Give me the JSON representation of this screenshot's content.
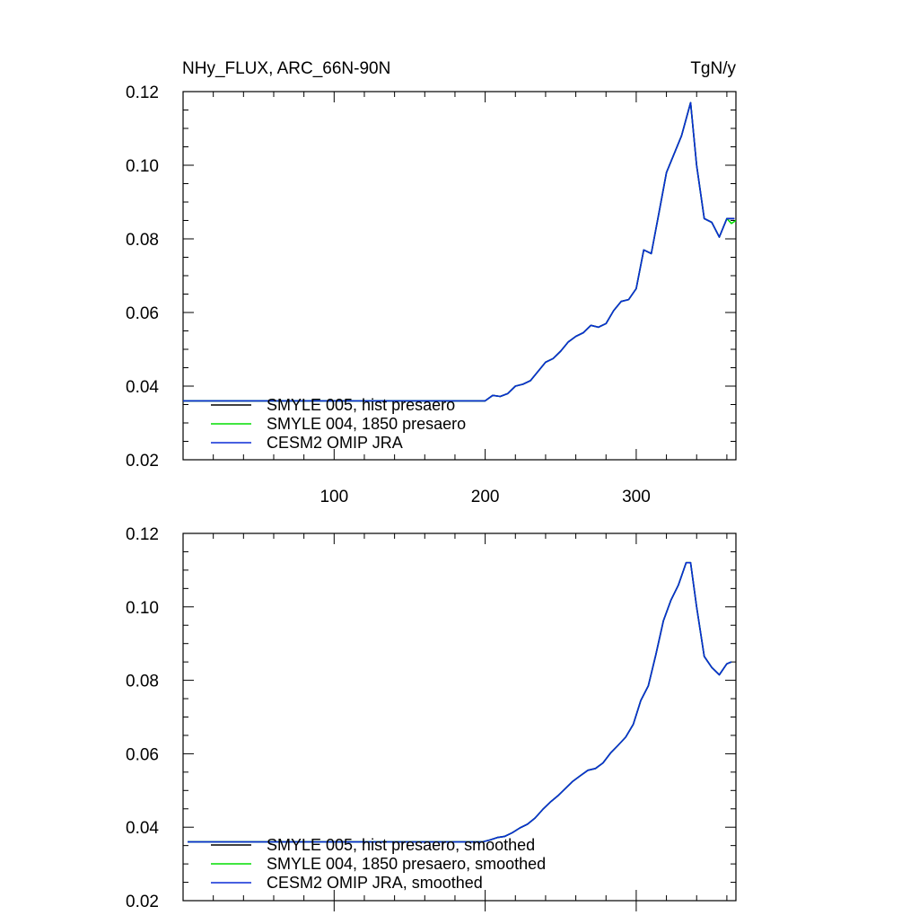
{
  "title_left": "NHy_FLUX, ARC_66N-90N",
  "title_right": "TgN/y",
  "colors": {
    "axis": "#000000",
    "smyle005": "#000000",
    "smyle004": "#00dd00",
    "jra": "#0a2bd6"
  },
  "chart_data": [
    {
      "type": "line",
      "id": "raw",
      "title": "NHy_FLUX, ARC_66N-90N",
      "units": "TgN/y",
      "xlim": [
        0,
        366
      ],
      "ylim": [
        0.02,
        0.12
      ],
      "yticks": [
        "0.02",
        "0.04",
        "0.06",
        "0.08",
        "0.10",
        "0.12"
      ],
      "xticks": [
        "100",
        "200",
        "300"
      ],
      "xtick_values": [
        100,
        200,
        300
      ],
      "grid": false,
      "legend_position": "bottom-left",
      "series": [
        {
          "name": "SMYLE 005, hist presaero",
          "color_key": "smyle005",
          "x": [
            0,
            200,
            205,
            210,
            215,
            220,
            225,
            230,
            235,
            240,
            245,
            250,
            255,
            260,
            265,
            270,
            275,
            280,
            285,
            290,
            295,
            300,
            305,
            310,
            315,
            320,
            325,
            330,
            336,
            340,
            345,
            350,
            355,
            360,
            365
          ],
          "y": [
            0.036,
            0.036,
            0.0375,
            0.0372,
            0.038,
            0.04,
            0.0405,
            0.0415,
            0.044,
            0.0465,
            0.0475,
            0.0495,
            0.052,
            0.0535,
            0.0545,
            0.0565,
            0.056,
            0.057,
            0.0605,
            0.063,
            0.0635,
            0.0665,
            0.077,
            0.076,
            0.087,
            0.098,
            0.103,
            0.108,
            0.117,
            0.1,
            0.0855,
            0.0845,
            0.0805,
            0.0855,
            0.0855
          ]
        },
        {
          "name": "SMYLE 004, 1850 presaero",
          "color_key": "smyle004",
          "x": [
            0,
            200,
            205,
            210,
            215,
            220,
            225,
            230,
            235,
            240,
            245,
            250,
            255,
            260,
            265,
            270,
            275,
            280,
            285,
            290,
            295,
            300,
            305,
            310,
            315,
            320,
            325,
            330,
            336,
            340,
            345,
            350,
            355,
            360,
            363,
            366
          ],
          "y": [
            0.036,
            0.036,
            0.0375,
            0.0372,
            0.038,
            0.04,
            0.0405,
            0.0415,
            0.044,
            0.0465,
            0.0475,
            0.0495,
            0.052,
            0.0535,
            0.0545,
            0.0565,
            0.056,
            0.057,
            0.0605,
            0.063,
            0.0635,
            0.0665,
            0.077,
            0.076,
            0.087,
            0.098,
            0.103,
            0.108,
            0.117,
            0.1,
            0.0855,
            0.0845,
            0.0805,
            0.0855,
            0.0842,
            0.085
          ]
        },
        {
          "name": "CESM2 OMIP JRA",
          "color_key": "jra",
          "x": [
            0,
            200,
            205,
            210,
            215,
            220,
            225,
            230,
            235,
            240,
            245,
            250,
            255,
            260,
            265,
            270,
            275,
            280,
            285,
            290,
            295,
            300,
            305,
            310,
            315,
            320,
            325,
            330,
            336,
            340,
            345,
            350,
            355,
            360,
            365
          ],
          "y": [
            0.036,
            0.036,
            0.0375,
            0.0372,
            0.038,
            0.04,
            0.0405,
            0.0415,
            0.044,
            0.0465,
            0.0475,
            0.0495,
            0.052,
            0.0535,
            0.0545,
            0.0565,
            0.056,
            0.057,
            0.0605,
            0.063,
            0.0635,
            0.0665,
            0.077,
            0.076,
            0.087,
            0.098,
            0.103,
            0.108,
            0.117,
            0.1,
            0.0855,
            0.0845,
            0.0805,
            0.0855,
            0.0855
          ]
        }
      ]
    },
    {
      "type": "line",
      "id": "smoothed",
      "xlim": [
        0,
        366
      ],
      "ylim": [
        0.02,
        0.12
      ],
      "yticks": [
        "0.02",
        "0.04",
        "0.06",
        "0.08",
        "0.10",
        "0.12"
      ],
      "xticks": [],
      "xtick_values": [
        100,
        200,
        300
      ],
      "grid": false,
      "legend_position": "bottom-left",
      "series": [
        {
          "name": "SMYLE 005, hist presaero, smoothed",
          "color_key": "smyle005",
          "x": [
            3,
            198,
            203,
            208,
            213,
            218,
            223,
            228,
            233,
            238,
            243,
            248,
            253,
            258,
            263,
            268,
            273,
            278,
            283,
            288,
            293,
            298,
            303,
            308,
            313,
            318,
            323,
            328,
            333,
            336,
            340,
            345,
            350,
            355,
            360,
            363
          ],
          "y": [
            0.036,
            0.036,
            0.0365,
            0.0372,
            0.0375,
            0.0385,
            0.0398,
            0.0408,
            0.0425,
            0.0448,
            0.0468,
            0.0485,
            0.0505,
            0.0525,
            0.054,
            0.0555,
            0.056,
            0.0575,
            0.0602,
            0.0623,
            0.0645,
            0.068,
            0.0745,
            0.0785,
            0.087,
            0.0962,
            0.1018,
            0.106,
            0.112,
            0.112,
            0.1,
            0.0865,
            0.0835,
            0.0815,
            0.0845,
            0.085
          ]
        },
        {
          "name": "SMYLE 004, 1850 presaero, smoothed",
          "color_key": "smyle004",
          "x": [
            3,
            198,
            203,
            208,
            213,
            218,
            223,
            228,
            233,
            238,
            243,
            248,
            253,
            258,
            263,
            268,
            273,
            278,
            283,
            288,
            293,
            298,
            303,
            308,
            313,
            318,
            323,
            328,
            333,
            336,
            340,
            345,
            350,
            355,
            360,
            363
          ],
          "y": [
            0.036,
            0.036,
            0.0365,
            0.0372,
            0.0375,
            0.0385,
            0.0398,
            0.0408,
            0.0425,
            0.0448,
            0.0468,
            0.0485,
            0.0505,
            0.0525,
            0.054,
            0.0555,
            0.056,
            0.0575,
            0.0602,
            0.0623,
            0.0645,
            0.068,
            0.0745,
            0.0785,
            0.087,
            0.0962,
            0.1018,
            0.106,
            0.112,
            0.112,
            0.1,
            0.0865,
            0.0835,
            0.0815,
            0.0845,
            0.085
          ]
        },
        {
          "name": "CESM2 OMIP JRA, smoothed",
          "color_key": "jra",
          "x": [
            3,
            198,
            203,
            208,
            213,
            218,
            223,
            228,
            233,
            238,
            243,
            248,
            253,
            258,
            263,
            268,
            273,
            278,
            283,
            288,
            293,
            298,
            303,
            308,
            313,
            318,
            323,
            328,
            333,
            336,
            340,
            345,
            350,
            355,
            360,
            363
          ],
          "y": [
            0.036,
            0.036,
            0.0365,
            0.0372,
            0.0375,
            0.0385,
            0.0398,
            0.0408,
            0.0425,
            0.0448,
            0.0468,
            0.0485,
            0.0505,
            0.0525,
            0.054,
            0.0555,
            0.056,
            0.0575,
            0.0602,
            0.0623,
            0.0645,
            0.068,
            0.0745,
            0.0785,
            0.087,
            0.0962,
            0.1018,
            0.106,
            0.112,
            0.112,
            0.1,
            0.0865,
            0.0835,
            0.0815,
            0.0845,
            0.085
          ]
        }
      ]
    }
  ]
}
